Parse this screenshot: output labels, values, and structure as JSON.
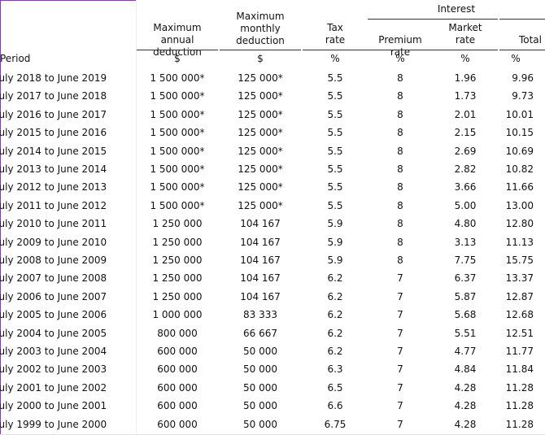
{
  "headers": {
    "interest_group": "Interest",
    "annual": [
      "Maximum annual",
      "deduction"
    ],
    "monthly": [
      "Maximum",
      "monthly",
      "deduction"
    ],
    "tax": [
      "Tax",
      "rate"
    ],
    "premium": "Premium rate",
    "market": [
      "Market",
      "rate"
    ],
    "total": "Total"
  },
  "units": {
    "period": "Period",
    "annual": "$",
    "monthly": "$",
    "tax": "%",
    "premium": "%",
    "market": "%",
    "total": "%"
  },
  "rows": [
    {
      "period": "July 2018 to June 2019",
      "annual": "1 500 000*",
      "monthly": "125 000*",
      "tax": "5.5",
      "premium": "8",
      "market": "1.96",
      "total": "9.96"
    },
    {
      "period": "July 2017 to June 2018",
      "annual": "1 500 000*",
      "monthly": "125 000*",
      "tax": "5.5",
      "premium": "8",
      "market": "1.73",
      "total": "9.73"
    },
    {
      "period": "July 2016 to June 2017",
      "annual": "1 500 000*",
      "monthly": "125 000*",
      "tax": "5.5",
      "premium": "8",
      "market": "2.01",
      "total": "10.01"
    },
    {
      "period": "July 2015 to June 2016",
      "annual": "1 500 000*",
      "monthly": "125 000*",
      "tax": "5.5",
      "premium": "8",
      "market": "2.15",
      "total": "10.15"
    },
    {
      "period": "July 2014 to June 2015",
      "annual": "1 500 000*",
      "monthly": "125 000*",
      "tax": "5.5",
      "premium": "8",
      "market": "2.69",
      "total": "10.69"
    },
    {
      "period": "July 2013 to June 2014",
      "annual": "1 500 000*",
      "monthly": "125 000*",
      "tax": "5.5",
      "premium": "8",
      "market": "2.82",
      "total": "10.82"
    },
    {
      "period": "July 2012 to June 2013",
      "annual": "1 500 000*",
      "monthly": "125 000*",
      "tax": "5.5",
      "premium": "8",
      "market": "3.66",
      "total": "11.66"
    },
    {
      "period": "July 2011 to June 2012",
      "annual": "1 500 000*",
      "monthly": "125 000*",
      "tax": "5.5",
      "premium": "8",
      "market": "5.00",
      "total": "13.00"
    },
    {
      "period": "July 2010 to June 2011",
      "annual": "1 250 000",
      "monthly": "104 167",
      "tax": "5.9",
      "premium": "8",
      "market": "4.80",
      "total": "12.80"
    },
    {
      "period": "July 2009 to June 2010",
      "annual": "1 250 000",
      "monthly": "104 167",
      "tax": "5.9",
      "premium": "8",
      "market": "3.13",
      "total": "11.13"
    },
    {
      "period": "July 2008 to June 2009",
      "annual": "1 250 000",
      "monthly": "104 167",
      "tax": "5.9",
      "premium": "8",
      "market": "7.75",
      "total": "15.75"
    },
    {
      "period": "July 2007 to June 2008",
      "annual": "1 250 000",
      "monthly": "104 167",
      "tax": "6.2",
      "premium": "7",
      "market": "6.37",
      "total": "13.37"
    },
    {
      "period": "July 2006 to June 2007",
      "annual": "1 250 000",
      "monthly": "104 167",
      "tax": "6.2",
      "premium": "7",
      "market": "5.87",
      "total": "12.87"
    },
    {
      "period": "July 2005 to June 2006",
      "annual": "1 000 000",
      "monthly": "83 333",
      "tax": "6.2",
      "premium": "7",
      "market": "5.68",
      "total": "12.68"
    },
    {
      "period": "July 2004 to June 2005",
      "annual": "800 000",
      "monthly": "66 667",
      "tax": "6.2",
      "premium": "7",
      "market": "5.51",
      "total": "12.51"
    },
    {
      "period": "July 2003 to June 2004",
      "annual": "600 000",
      "monthly": "50 000",
      "tax": "6.2",
      "premium": "7",
      "market": "4.77",
      "total": "11.77"
    },
    {
      "period": "July 2002 to June 2003",
      "annual": "600 000",
      "monthly": "50 000",
      "tax": "6.3",
      "premium": "7",
      "market": "4.84",
      "total": "11.84"
    },
    {
      "period": "July 2001 to June 2002",
      "annual": "600 000",
      "monthly": "50 000",
      "tax": "6.5",
      "premium": "7",
      "market": "4.28",
      "total": "11.28"
    },
    {
      "period": "July 2000 to June 2001",
      "annual": "600 000",
      "monthly": "50 000",
      "tax": "6.6",
      "premium": "7",
      "market": "4.28",
      "total": "11.28"
    },
    {
      "period": "July 1999 to June 2000",
      "annual": "600 000",
      "monthly": "50 000",
      "tax": "6.75",
      "premium": "7",
      "market": "4.28",
      "total": "11.28"
    }
  ]
}
